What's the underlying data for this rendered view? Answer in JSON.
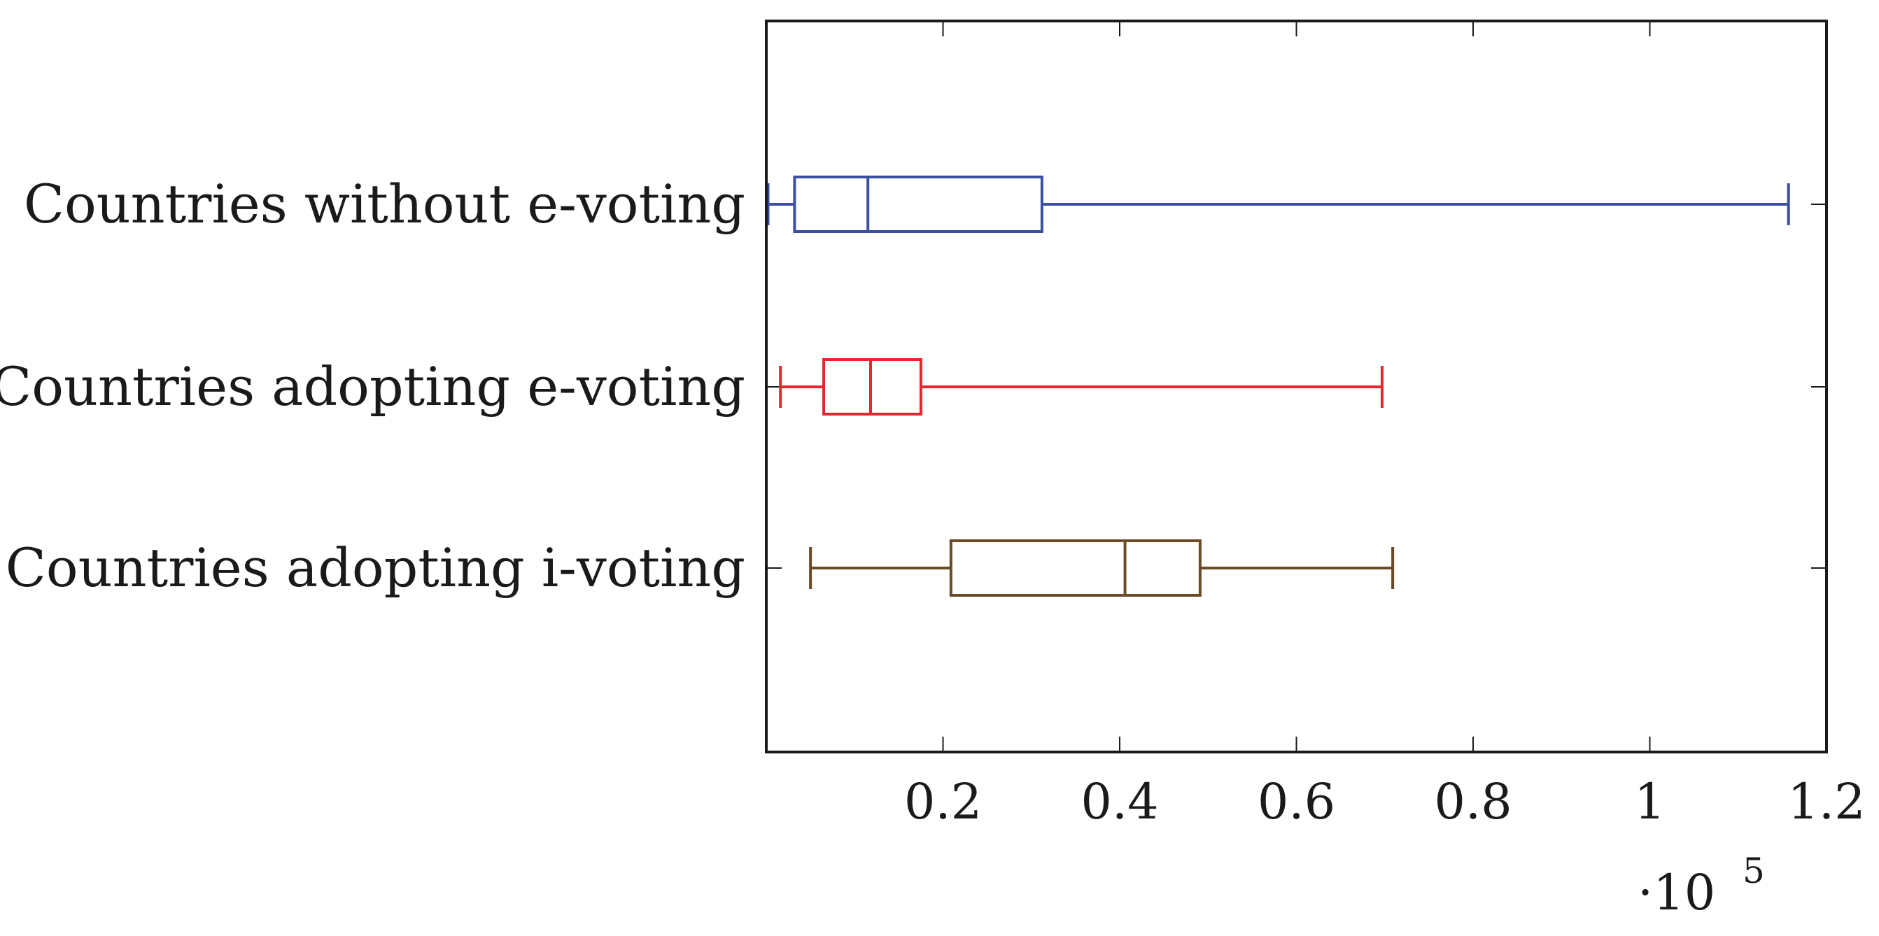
{
  "chart_data": {
    "type": "boxplot",
    "orientation": "horizontal",
    "title": "",
    "xlabel": "",
    "ylabel": "",
    "x_scale_label": "·10",
    "x_scale_exponent": "5",
    "xlim": [
      0,
      1.2
    ],
    "x_ticks": [
      0.2,
      0.4,
      0.6,
      0.8,
      1.0,
      1.2
    ],
    "x_tick_labels": [
      "0.2",
      "0.4",
      "0.6",
      "0.8",
      "1",
      "1.2"
    ],
    "x_units_multiplier": 100000,
    "grid": false,
    "legend": "none",
    "series": [
      {
        "category": "Countries without e-voting",
        "color": "#3b4fa3",
        "whisker_low": 0.002,
        "q1": 0.032,
        "median": 0.115,
        "q3": 0.312,
        "whisker_high": 1.157
      },
      {
        "category": "Countries adopting e-voting",
        "color": "#e8252e",
        "whisker_low": 0.016,
        "q1": 0.065,
        "median": 0.118,
        "q3": 0.175,
        "whisker_high": 0.697
      },
      {
        "category": "Countries adopting i-voting",
        "color": "#6b4a26",
        "whisker_low": 0.05,
        "q1": 0.209,
        "median": 0.406,
        "q3": 0.491,
        "whisker_high": 0.709
      }
    ]
  }
}
